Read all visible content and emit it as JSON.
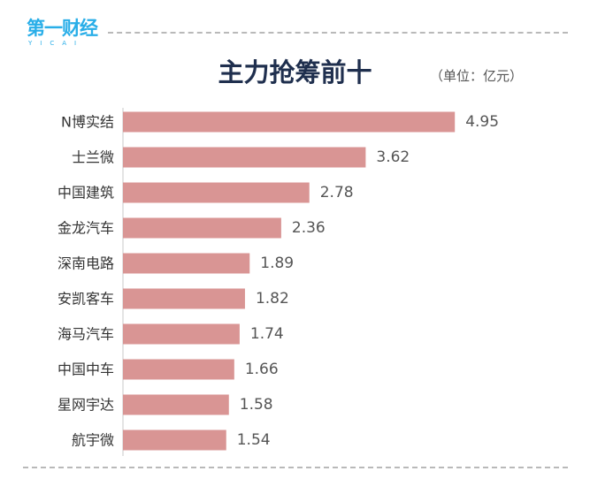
{
  "brand": {
    "name_cn": "第一财经",
    "name_en": "YICAI",
    "color": "#29aee8"
  },
  "unit_note": "（单位：亿元）",
  "colors": {
    "bar": "#d99594",
    "axis": "#c8c8c8",
    "title": "#1f2f4e"
  },
  "chart_data": {
    "type": "bar",
    "orientation": "horizontal",
    "title": "主力抢筹前十",
    "categories": [
      "N博实结",
      "士兰微",
      "中国建筑",
      "金龙汽车",
      "深南电路",
      "安凯客车",
      "海马汽车",
      "中国中车",
      "星网宇达",
      "航宇微"
    ],
    "values": [
      4.95,
      3.62,
      2.78,
      2.36,
      1.89,
      1.82,
      1.74,
      1.66,
      1.58,
      1.54
    ],
    "xlim": [
      0,
      5.0
    ],
    "grid": false,
    "legend": "none"
  }
}
